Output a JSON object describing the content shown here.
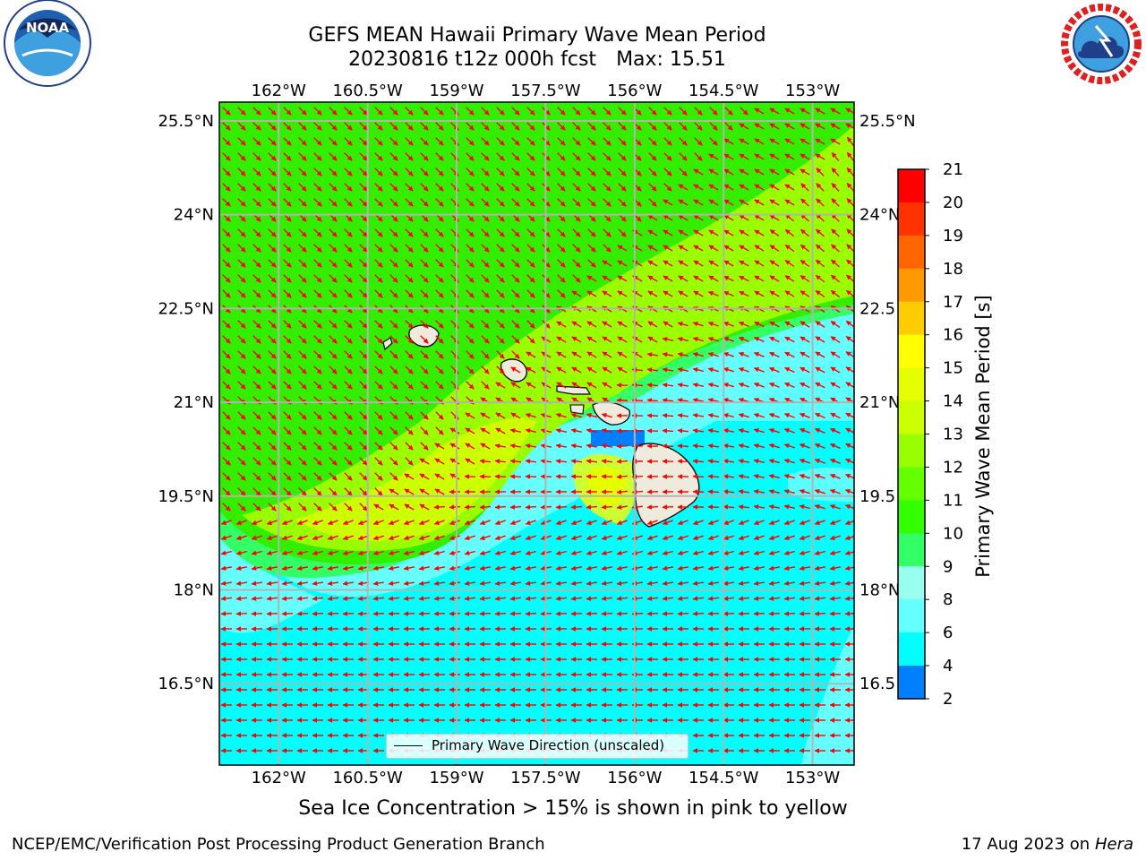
{
  "title": {
    "line1": "GEFS MEAN Hawaii Primary Wave Mean Period",
    "date_fcst": "20230816 t12z 000h fcst",
    "max_label": "Max: 15.51"
  },
  "logos": {
    "left": {
      "name": "noaa-logo",
      "text": "NOAA",
      "ring_text": "NATIONAL OCEANIC AND ATMOSPHERIC ADMINISTRATION · U.S. DEPARTMENT OF COMMERCE"
    },
    "right": {
      "name": "nws-logo",
      "ring_text": "NATIONAL WEATHER SERVICE"
    }
  },
  "map": {
    "lon_labels": [
      "162°W",
      "160.5°W",
      "159°W",
      "157.5°W",
      "156°W",
      "154.5°W",
      "153°W"
    ],
    "lon_values": [
      -162,
      -160.5,
      -159,
      -157.5,
      -156,
      -154.5,
      -153
    ],
    "lat_labels": [
      "25.5°N",
      "24°N",
      "22.5°N",
      "21°N",
      "19.5°N",
      "18°N",
      "16.5°N"
    ],
    "lat_values": [
      25.5,
      24,
      22.5,
      21,
      19.5,
      18,
      16.5
    ],
    "right_lat_labels": [
      "25.5°N",
      "24°N",
      "22.5",
      "21°N",
      "19.5",
      "18°N",
      "16.5"
    ],
    "extent": {
      "lon_min": -163,
      "lon_max": -152.3,
      "lat_min": 15.2,
      "lat_max": 25.8
    },
    "legend_label": "Primary Wave Direction (unscaled)",
    "arrow_color": "#ff0000",
    "grid_color": "#b3b3b3"
  },
  "colorbar": {
    "title": "Primary Wave Mean Period [s]",
    "ticks": [
      21,
      20,
      19,
      18,
      17,
      16,
      15,
      14,
      13,
      12,
      11,
      10,
      9,
      8,
      6,
      4,
      2
    ],
    "colors": [
      "#ff0000",
      "#ff3300",
      "#ff6600",
      "#ff9900",
      "#ffcc00",
      "#ffff00",
      "#e6ff00",
      "#ccff00",
      "#99ff00",
      "#66ff00",
      "#33ff00",
      "#33ff66",
      "#99ffee",
      "#66ffff",
      "#00ffff",
      "#0080ff",
      "#0000ff"
    ]
  },
  "caption": "Sea Ice Concentration > 15% is shown in pink to yellow",
  "footer": {
    "left": "NCEP/EMC/Verification Post Processing Product Generation Branch",
    "right_date": "17 Aug 2023 on",
    "right_host": "Hera"
  }
}
